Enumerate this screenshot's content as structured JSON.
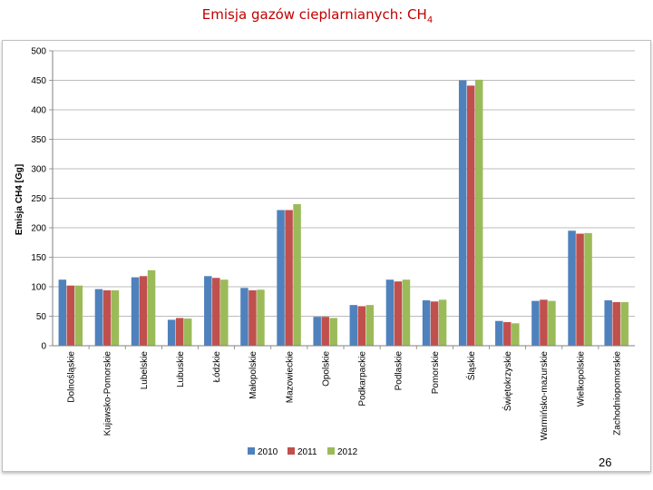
{
  "slide": {
    "title_main": "Emisja gazów cieplarnianych: CH",
    "title_sub": "4",
    "page_number": "26"
  },
  "chart_data": {
    "type": "bar",
    "title": "",
    "xlabel": "",
    "ylabel": "Emisja CH4 [Gg]",
    "ylim": [
      0,
      500
    ],
    "yticks": [
      0,
      50,
      100,
      150,
      200,
      250,
      300,
      350,
      400,
      450,
      500
    ],
    "grid": true,
    "legend": "bottom",
    "categories": [
      "Dolnośląskie",
      "Kujawsko-Pomorskie",
      "Lubelskie",
      "Lubuskie",
      "Łódzkie",
      "Małopolskie",
      "Mazowieckie",
      "Opolskie",
      "Podkarpackie",
      "Podlaskie",
      "Pomorskie",
      "Śląskie",
      "Świętokrzyskie",
      "Warmińsko-mazurskie",
      "Wielkopolskie",
      "Zachodniopomorskie"
    ],
    "series": [
      {
        "name": "2010",
        "color": "#4f81bd",
        "values": [
          112,
          96,
          116,
          44,
          118,
          98,
          230,
          49,
          69,
          112,
          77,
          450,
          42,
          76,
          195,
          77
        ]
      },
      {
        "name": "2011",
        "color": "#c0504d",
        "values": [
          102,
          94,
          118,
          47,
          115,
          94,
          230,
          49,
          67,
          109,
          75,
          441,
          40,
          78,
          190,
          74
        ]
      },
      {
        "name": "2012",
        "color": "#9bbb59",
        "values": [
          102,
          94,
          128,
          46,
          112,
          95,
          240,
          47,
          69,
          112,
          78,
          451,
          38,
          76,
          191,
          74
        ]
      }
    ]
  }
}
